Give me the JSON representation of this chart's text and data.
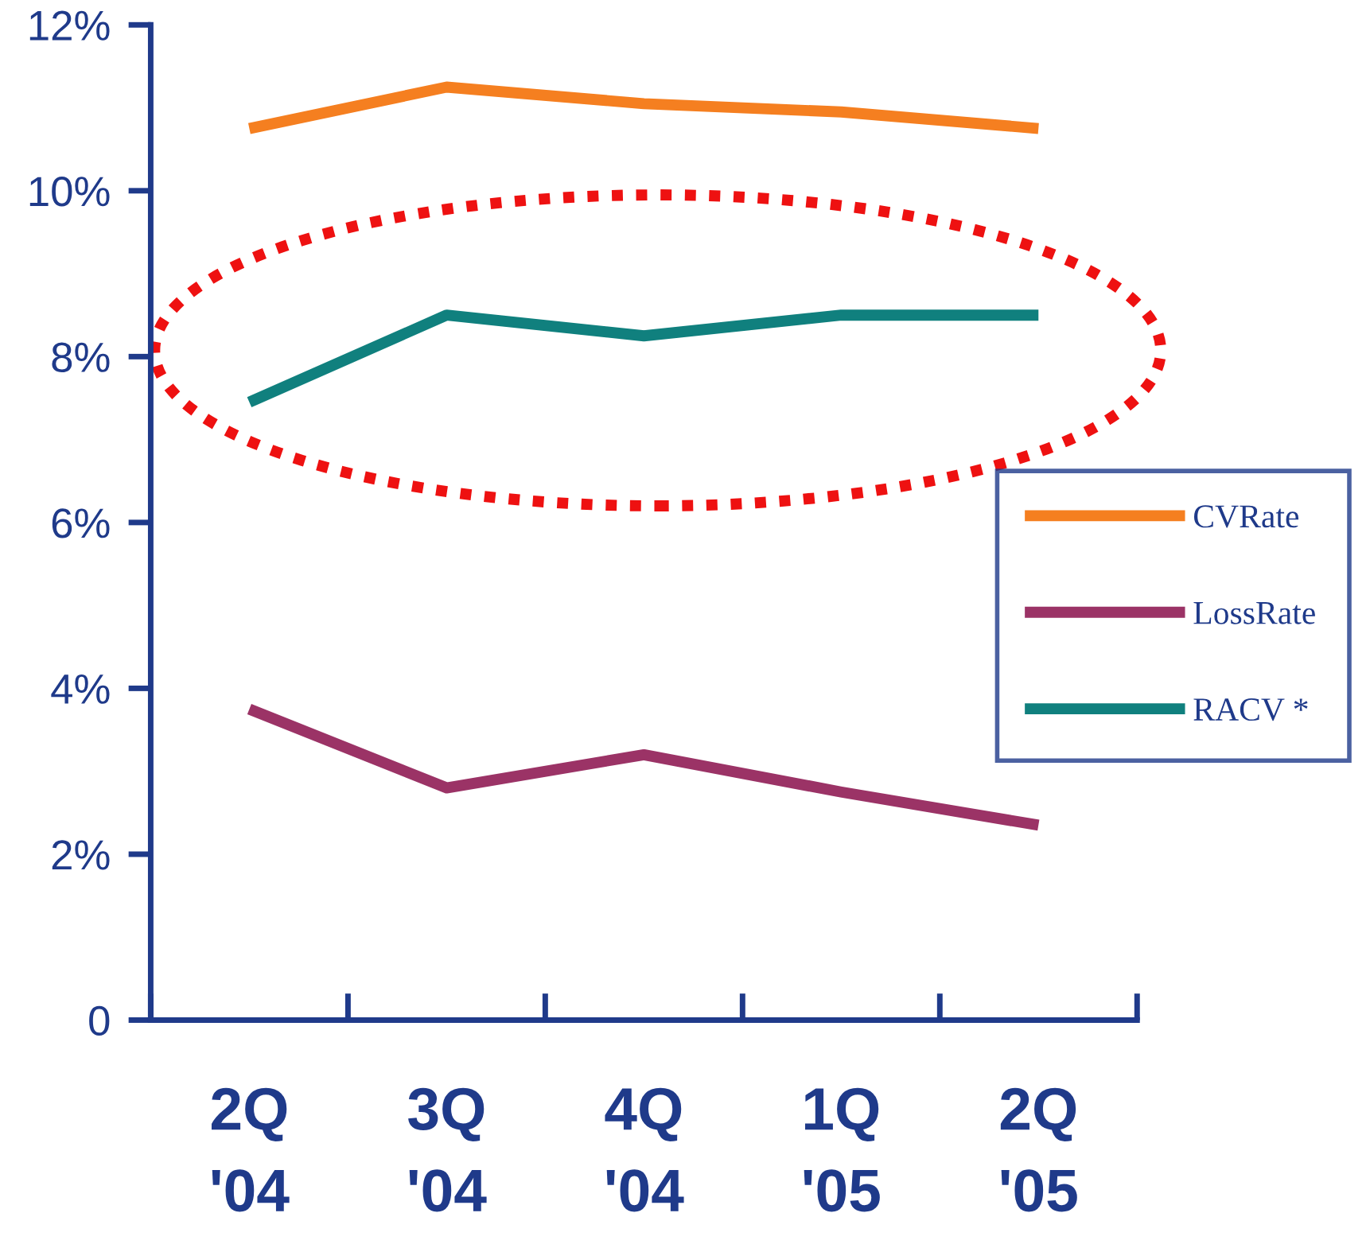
{
  "chart_data": {
    "type": "line",
    "categories": [
      "2Q\n'04",
      "3Q\n'04",
      "4Q\n'04",
      "1Q\n'05",
      "2Q\n'05"
    ],
    "series": [
      {
        "name": "CVRate",
        "color": "#f57f20",
        "values": [
          10.75,
          11.25,
          11.05,
          10.95,
          10.75
        ]
      },
      {
        "name": "LossRate",
        "color": "#9b3366",
        "values": [
          3.75,
          2.8,
          3.2,
          2.75,
          2.35
        ]
      },
      {
        "name": "RACV *",
        "color": "#10807e",
        "values": [
          7.45,
          8.5,
          8.25,
          8.5,
          8.5
        ]
      }
    ],
    "ylim": [
      0,
      12
    ],
    "yticks": [
      {
        "value": 0,
        "label": "0"
      },
      {
        "value": 2,
        "label": "2%"
      },
      {
        "value": 4,
        "label": "4%"
      },
      {
        "value": 6,
        "label": "6%"
      },
      {
        "value": 8,
        "label": "8%"
      },
      {
        "value": 10,
        "label": "10%"
      },
      {
        "value": 12,
        "label": "12%"
      }
    ],
    "legend": "right",
    "grid": false,
    "marker": "none",
    "line_style": "solid"
  }
}
